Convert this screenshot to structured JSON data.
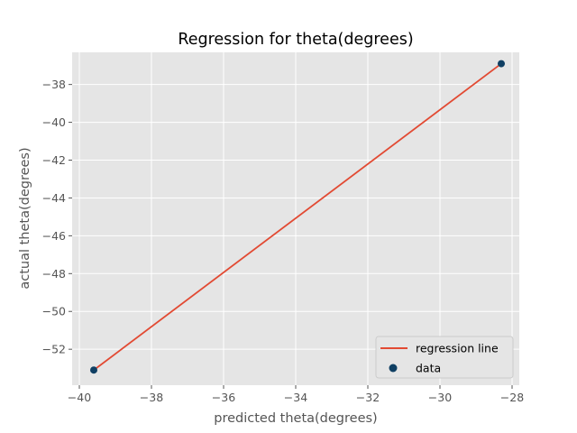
{
  "chart_data": {
    "type": "scatter",
    "title": "Regression for theta(degrees)",
    "xlabel": "predicted theta(degrees)",
    "ylabel": "actual theta(degrees)",
    "xlim": [
      -40.2,
      -27.8
    ],
    "ylim": [
      -53.9,
      -36.3
    ],
    "xticks": [
      -40,
      -38,
      -36,
      -34,
      -32,
      -30,
      -28
    ],
    "yticks": [
      -52,
      -50,
      -48,
      -46,
      -44,
      -42,
      -40,
      -38
    ],
    "grid": true,
    "legend_position": "lower-right",
    "series": [
      {
        "name": "regression line",
        "kind": "line",
        "color": "#E24A33",
        "x": [
          -39.6,
          -28.3
        ],
        "y": [
          -53.1,
          -36.9
        ]
      },
      {
        "name": "data",
        "kind": "scatter",
        "color": "#0F3F63",
        "x": [
          -39.6,
          -28.3
        ],
        "y": [
          -53.1,
          -36.9
        ]
      }
    ]
  }
}
